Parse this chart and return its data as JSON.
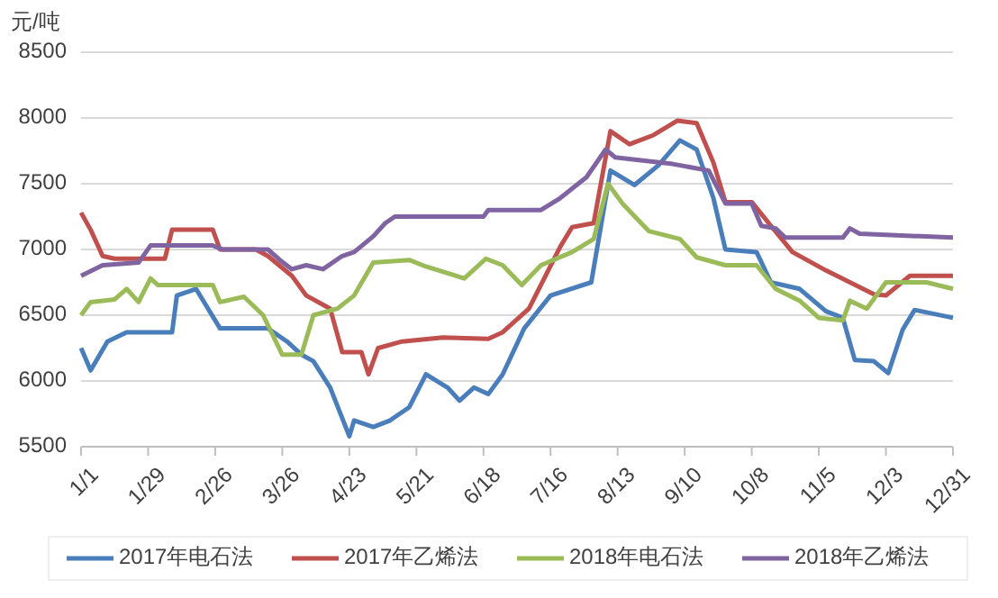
{
  "chart_data": {
    "type": "line",
    "ylabel": "元/吨",
    "ylim": [
      5500,
      8500
    ],
    "yticks": [
      5500,
      6000,
      6500,
      7000,
      7500,
      8000,
      8500
    ],
    "xlim": [
      "--01-01",
      "--12-31"
    ],
    "xticks": [
      {
        "value": "--01-01",
        "label": "1/1"
      },
      {
        "value": "--01-29",
        "label": "1/29"
      },
      {
        "value": "--02-26",
        "label": "2/26"
      },
      {
        "value": "--03-26",
        "label": "3/26"
      },
      {
        "value": "--04-23",
        "label": "4/23"
      },
      {
        "value": "--05-21",
        "label": "5/21"
      },
      {
        "value": "--06-18",
        "label": "6/18"
      },
      {
        "value": "--07-16",
        "label": "7/16"
      },
      {
        "value": "--08-13",
        "label": "8/13"
      },
      {
        "value": "--09-10",
        "label": "9/10"
      },
      {
        "value": "--10-08",
        "label": "10/8"
      },
      {
        "value": "--11-05",
        "label": "11/5"
      },
      {
        "value": "--12-03",
        "label": "12/3"
      },
      {
        "value": "--12-31",
        "label": "12/31"
      }
    ],
    "grid": "y",
    "legend": "bottom",
    "marker": "none",
    "line_style": "solid",
    "series": [
      {
        "name": "2017年电石法",
        "color": "#4a7ebb",
        "x": [
          "--01-01",
          "--01-05",
          "--01-12",
          "--01-20",
          "--02-08",
          "--02-10",
          "--02-18",
          "--02-28",
          "--03-20",
          "--03-28",
          "--04-03",
          "--04-08",
          "--04-15",
          "--04-23",
          "--04-25",
          "--05-03",
          "--05-10",
          "--05-18",
          "--05-25",
          "--06-03",
          "--06-08",
          "--06-14",
          "--06-20",
          "--06-26",
          "--07-05",
          "--07-16",
          "--08-02",
          "--08-10",
          "--08-20",
          "--08-30",
          "--09-08",
          "--09-15",
          "--09-22",
          "--09-27",
          "--10-10",
          "--10-16",
          "--10-28",
          "--11-08",
          "--11-15",
          "--11-20",
          "--11-28",
          "--12-04",
          "--12-10",
          "--12-15",
          "--12-31"
        ],
        "values": [
          6250,
          6080,
          6300,
          6370,
          6370,
          6650,
          6700,
          6400,
          6400,
          6300,
          6200,
          6150,
          5950,
          5580,
          5700,
          5650,
          5700,
          5800,
          6050,
          5950,
          5850,
          5950,
          5900,
          6050,
          6400,
          6650,
          6750,
          7600,
          7490,
          7640,
          7830,
          7760,
          7390,
          7000,
          6980,
          6750,
          6700,
          6530,
          6480,
          6160,
          6150,
          6060,
          6390,
          6540,
          6480
        ]
      },
      {
        "name": "2017年乙烯法",
        "color": "#c0504d",
        "x": [
          "--01-01",
          "--01-05",
          "--01-10",
          "--01-15",
          "--02-05",
          "--02-08",
          "--02-25",
          "--02-28",
          "--03-15",
          "--03-20",
          "--03-30",
          "--04-05",
          "--04-15",
          "--04-20",
          "--04-28",
          "--05-01",
          "--05-05",
          "--05-15",
          "--06-01",
          "--06-20",
          "--06-26",
          "--07-07",
          "--07-20",
          "--07-25",
          "--08-03",
          "--08-10",
          "--08-18",
          "--08-28",
          "--09-07",
          "--09-15",
          "--09-22",
          "--09-27",
          "--10-08",
          "--10-16",
          "--10-25",
          "--11-08",
          "--11-18",
          "--11-28",
          "--12-03",
          "--12-13",
          "--12-31"
        ],
        "values": [
          7280,
          7150,
          6950,
          6930,
          6930,
          7150,
          7150,
          7000,
          7000,
          6950,
          6800,
          6650,
          6550,
          6220,
          6220,
          6050,
          6250,
          6300,
          6330,
          6320,
          6370,
          6550,
          7020,
          7170,
          7200,
          7900,
          7800,
          7870,
          7980,
          7960,
          7660,
          7360,
          7360,
          7180,
          6980,
          6840,
          6750,
          6660,
          6650,
          6800,
          6800
        ]
      },
      {
        "name": "2018年电石法",
        "color": "#9bbb59",
        "x": [
          "--01-01",
          "--01-05",
          "--01-15",
          "--01-20",
          "--01-25",
          "--01-30",
          "--02-02",
          "--02-25",
          "--02-28",
          "--03-10",
          "--03-18",
          "--03-26",
          "--04-03",
          "--04-08",
          "--04-18",
          "--04-25",
          "--05-03",
          "--05-18",
          "--05-25",
          "--06-10",
          "--06-19",
          "--06-26",
          "--07-04",
          "--07-12",
          "--07-25",
          "--08-03",
          "--08-09",
          "--08-15",
          "--08-26",
          "--09-08",
          "--09-15",
          "--09-27",
          "--10-10",
          "--10-18",
          "--10-28",
          "--11-05",
          "--11-15",
          "--11-18",
          "--11-25",
          "--12-03",
          "--12-20",
          "--12-31"
        ],
        "values": [
          6500,
          6600,
          6620,
          6700,
          6600,
          6780,
          6730,
          6730,
          6600,
          6640,
          6500,
          6200,
          6200,
          6500,
          6550,
          6650,
          6900,
          6920,
          6870,
          6780,
          6930,
          6880,
          6730,
          6880,
          6980,
          7080,
          7500,
          7350,
          7140,
          7080,
          6940,
          6880,
          6880,
          6700,
          6610,
          6480,
          6460,
          6610,
          6550,
          6750,
          6750,
          6700
        ]
      },
      {
        "name": "2018年乙烯法",
        "color": "#8064a2",
        "x": [
          "--01-01",
          "--01-10",
          "--01-25",
          "--01-30",
          "--02-25",
          "--03-01",
          "--03-20",
          "--03-25",
          "--03-30",
          "--04-05",
          "--04-12",
          "--04-20",
          "--04-25",
          "--05-03",
          "--05-08",
          "--05-12",
          "--06-18",
          "--06-20",
          "--07-12",
          "--07-20",
          "--07-31",
          "--08-08",
          "--08-12",
          "--09-05",
          "--09-20",
          "--09-27",
          "--10-08",
          "--10-12",
          "--10-18",
          "--10-22",
          "--11-15",
          "--11-18",
          "--11-22",
          "--12-31"
        ],
        "values": [
          6800,
          6880,
          6900,
          7030,
          7030,
          7000,
          7000,
          6920,
          6850,
          6880,
          6850,
          6950,
          6980,
          7100,
          7200,
          7250,
          7250,
          7300,
          7300,
          7390,
          7550,
          7760,
          7700,
          7650,
          7600,
          7350,
          7350,
          7180,
          7160,
          7090,
          7090,
          7160,
          7120,
          7090
        ]
      }
    ]
  }
}
